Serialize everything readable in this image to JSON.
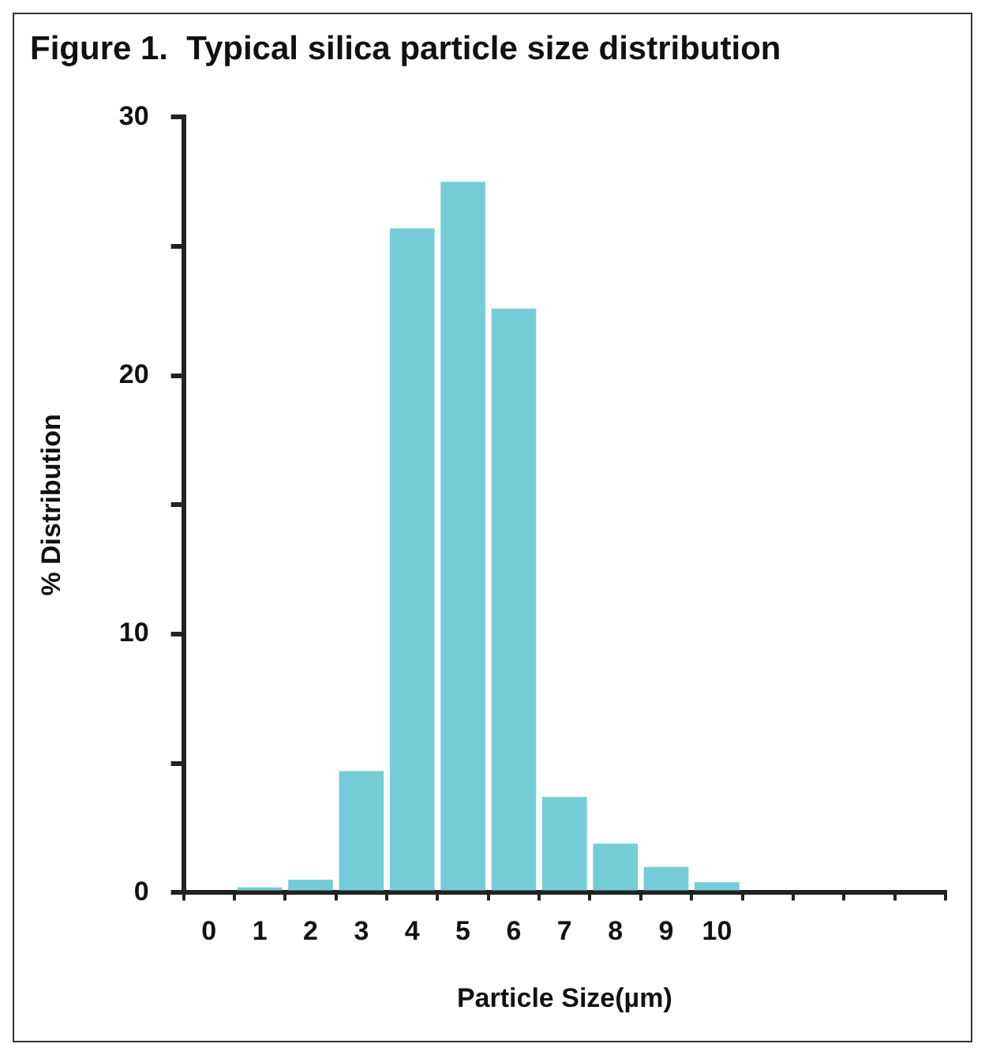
{
  "chart_data": {
    "type": "bar",
    "title": "Figure 1.  Typical silica particle size distribution",
    "xlabel": "Particle Size(µm)",
    "ylabel": "% Distribution",
    "categories": [
      "0",
      "1",
      "2",
      "3",
      "4",
      "5",
      "6",
      "7",
      "8",
      "9",
      "10",
      null,
      null,
      null,
      null
    ],
    "values": [
      0,
      0.2,
      0.5,
      4.7,
      25.7,
      27.5,
      22.6,
      3.7,
      1.9,
      1.0,
      0.4,
      0,
      0,
      0,
      0
    ],
    "color": "#74cdd6",
    "ylim": [
      0,
      30
    ],
    "yticks": [
      0,
      {
        "value": 5,
        "label": null
      },
      10,
      {
        "value": 15,
        "label": null
      },
      20,
      {
        "value": 25,
        "label": null
      },
      30
    ],
    "grid": false,
    "legend": false
  }
}
